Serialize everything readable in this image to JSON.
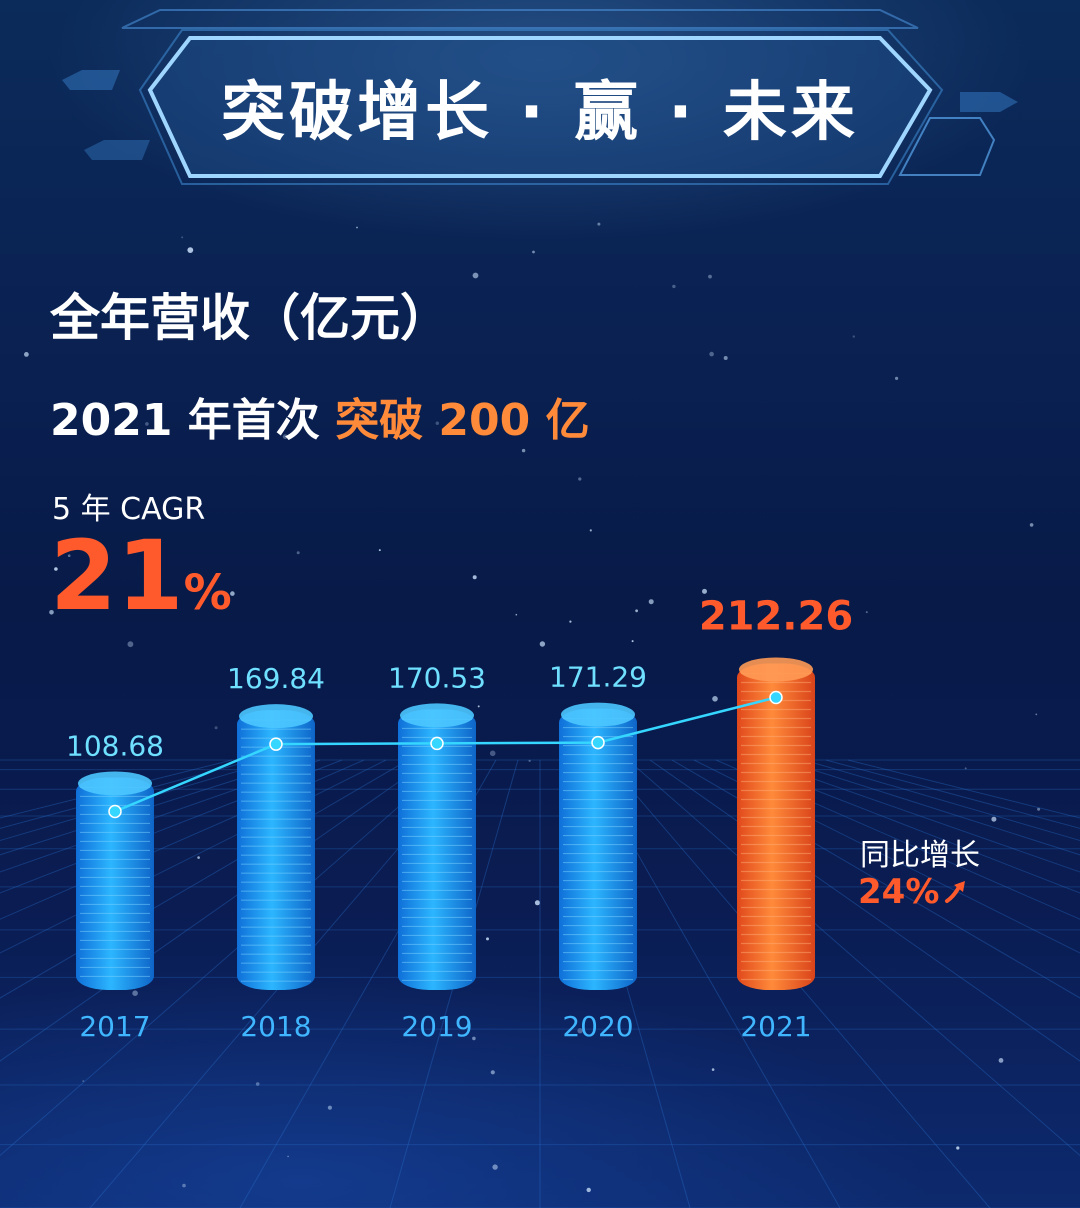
{
  "banner": {
    "title": "突破增长 · 赢 · 未来"
  },
  "headline": "全年营收（亿元）",
  "subline": {
    "prefix": "2021 年首次 ",
    "highlight": "突破 200 亿"
  },
  "cagr": {
    "label": "5 年 CAGR",
    "value": "21",
    "unit": "%"
  },
  "yoy": {
    "label": "同比增长",
    "value": "24%",
    "icon": "arrow-up-right-icon"
  },
  "colors": {
    "bar_blue": "#1e9bf0",
    "bar_orange": "#ff6a2a",
    "line": "#35d6ff",
    "value_blue": "#6fe0ff",
    "value_orange": "#ff5a2c",
    "year_label": "#3fb6ff"
  },
  "chart_data": {
    "type": "bar",
    "categories": [
      "2017",
      "2018",
      "2019",
      "2020",
      "2021"
    ],
    "values": [
      108.68,
      169.84,
      170.53,
      171.29,
      212.26
    ],
    "value_labels": [
      "108.68",
      "169.84",
      "170.53",
      "171.29",
      "212.26"
    ],
    "highlight_index": 4,
    "overlay_line": true
  }
}
